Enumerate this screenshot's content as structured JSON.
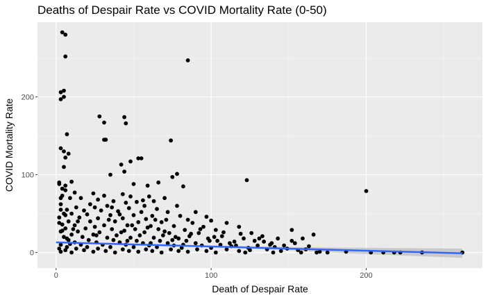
{
  "chart_data": {
    "type": "scatter",
    "title": "Deaths of Despair Rate vs COVID Mortality Rate (0-50)",
    "xlabel": "Death of Despair Rate",
    "ylabel": "COVID Mortality Rate",
    "xlim": [
      -12,
      275
    ],
    "ylim": [
      -20,
      296
    ],
    "x_ticks": [
      0,
      100,
      200
    ],
    "y_ticks": [
      0,
      100,
      200
    ],
    "x_minor": [
      50,
      150,
      250
    ],
    "y_minor": [
      50,
      150,
      250
    ],
    "grid": true,
    "background_color": "#ebebeb",
    "point_color": "#000000",
    "trend_color": "#3366ff",
    "ribbon_color": "#bdbdbd",
    "trend_line": {
      "x_start": 0,
      "y_start": 13,
      "x_end": 262,
      "y_end": -1
    },
    "confidence_band": {
      "x": [
        0,
        50,
        100,
        150,
        200,
        262
      ],
      "lower": [
        12,
        10,
        7,
        3,
        -2,
        -7
      ],
      "upper": [
        14,
        11.5,
        9,
        7,
        6,
        5
      ]
    },
    "points": [
      [
        4,
        283
      ],
      [
        6,
        280
      ],
      [
        6,
        252
      ],
      [
        85,
        247
      ],
      [
        3,
        206
      ],
      [
        5,
        208
      ],
      [
        3,
        197
      ],
      [
        5,
        200
      ],
      [
        28,
        175
      ],
      [
        44,
        174
      ],
      [
        31,
        167
      ],
      [
        45,
        166
      ],
      [
        7,
        152
      ],
      [
        32,
        145
      ],
      [
        31,
        145
      ],
      [
        74,
        144
      ],
      [
        3,
        134
      ],
      [
        5,
        130
      ],
      [
        8,
        127
      ],
      [
        6,
        122
      ],
      [
        53,
        121
      ],
      [
        55,
        121
      ],
      [
        48,
        117
      ],
      [
        42,
        113
      ],
      [
        5,
        110
      ],
      [
        44,
        104
      ],
      [
        78,
        101
      ],
      [
        35,
        100
      ],
      [
        75,
        97
      ],
      [
        123,
        93
      ],
      [
        2,
        90
      ],
      [
        10,
        91
      ],
      [
        6,
        86
      ],
      [
        50,
        88
      ],
      [
        66,
        90
      ],
      [
        59,
        86
      ],
      [
        82,
        85
      ],
      [
        4,
        82
      ],
      [
        6,
        80
      ],
      [
        12,
        77
      ],
      [
        200,
        79
      ],
      [
        24,
        76
      ],
      [
        43,
        75
      ],
      [
        31,
        73
      ],
      [
        60,
        72
      ],
      [
        3,
        70
      ],
      [
        9,
        70
      ],
      [
        16,
        70
      ],
      [
        48,
        72
      ],
      [
        70,
        70
      ],
      [
        27,
        68
      ],
      [
        37,
        66
      ],
      [
        52,
        65
      ],
      [
        63,
        66
      ],
      [
        45,
        64
      ],
      [
        22,
        62
      ],
      [
        33,
        60
      ],
      [
        57,
        60
      ],
      [
        78,
        60
      ],
      [
        13,
        58
      ],
      [
        25,
        58
      ],
      [
        47,
        57
      ],
      [
        65,
        56
      ],
      [
        3,
        55
      ],
      [
        7,
        55
      ],
      [
        18,
        54
      ],
      [
        29,
        54
      ],
      [
        40,
        53
      ],
      [
        55,
        52
      ],
      [
        72,
        52
      ],
      [
        90,
        52
      ],
      [
        5,
        50
      ],
      [
        10,
        50
      ],
      [
        20,
        49
      ],
      [
        35,
        48
      ],
      [
        50,
        48
      ],
      [
        62,
        47
      ],
      [
        80,
        47
      ],
      [
        97,
        46
      ],
      [
        2,
        45
      ],
      [
        15,
        45
      ],
      [
        27,
        44
      ],
      [
        43,
        44
      ],
      [
        58,
        43
      ],
      [
        71,
        42
      ],
      [
        85,
        42
      ],
      [
        100,
        41
      ],
      [
        8,
        40
      ],
      [
        22,
        40
      ],
      [
        38,
        40
      ],
      [
        53,
        39
      ],
      [
        68,
        39
      ],
      [
        88,
        38
      ],
      [
        110,
        38
      ],
      [
        4,
        36
      ],
      [
        12,
        35
      ],
      [
        31,
        35
      ],
      [
        46,
        35
      ],
      [
        61,
        34
      ],
      [
        76,
        34
      ],
      [
        95,
        33
      ],
      [
        118,
        33
      ],
      [
        6,
        31
      ],
      [
        19,
        31
      ],
      [
        36,
        30
      ],
      [
        51,
        30
      ],
      [
        66,
        30
      ],
      [
        83,
        29
      ],
      [
        103,
        29
      ],
      [
        152,
        29
      ],
      [
        3,
        27
      ],
      [
        14,
        27
      ],
      [
        28,
        26
      ],
      [
        42,
        26
      ],
      [
        57,
        26
      ],
      [
        73,
        25
      ],
      [
        92,
        25
      ],
      [
        126,
        25
      ],
      [
        10,
        23
      ],
      [
        24,
        23
      ],
      [
        39,
        22
      ],
      [
        54,
        22
      ],
      [
        69,
        22
      ],
      [
        86,
        21
      ],
      [
        107,
        21
      ],
      [
        133,
        21
      ],
      [
        166,
        23
      ],
      [
        5,
        20
      ],
      [
        17,
        20
      ],
      [
        33,
        19
      ],
      [
        48,
        19
      ],
      [
        63,
        19
      ],
      [
        79,
        18
      ],
      [
        98,
        18
      ],
      [
        121,
        18
      ],
      [
        143,
        18
      ],
      [
        159,
        18
      ],
      [
        8,
        16
      ],
      [
        21,
        16
      ],
      [
        37,
        16
      ],
      [
        52,
        15
      ],
      [
        67,
        15
      ],
      [
        84,
        15
      ],
      [
        104,
        15
      ],
      [
        128,
        15
      ],
      [
        12,
        13
      ],
      [
        26,
        13
      ],
      [
        41,
        13
      ],
      [
        56,
        12
      ],
      [
        72,
        12
      ],
      [
        90,
        12
      ],
      [
        112,
        12
      ],
      [
        139,
        12
      ],
      [
        154,
        12
      ],
      [
        3,
        10
      ],
      [
        16,
        10
      ],
      [
        30,
        10
      ],
      [
        45,
        10
      ],
      [
        60,
        9
      ],
      [
        76,
        9
      ],
      [
        94,
        9
      ],
      [
        116,
        9
      ],
      [
        147,
        9
      ],
      [
        7,
        7
      ],
      [
        20,
        7
      ],
      [
        35,
        7
      ],
      [
        50,
        7
      ],
      [
        65,
        7
      ],
      [
        81,
        6
      ],
      [
        100,
        6
      ],
      [
        124,
        6
      ],
      [
        2,
        5
      ],
      [
        13,
        5
      ],
      [
        27,
        5
      ],
      [
        43,
        4
      ],
      [
        58,
        4
      ],
      [
        74,
        4
      ],
      [
        91,
        4
      ],
      [
        110,
        4
      ],
      [
        136,
        4
      ],
      [
        161,
        4
      ],
      [
        6,
        3
      ],
      [
        18,
        3
      ],
      [
        32,
        2
      ],
      [
        47,
        2
      ],
      [
        62,
        2
      ],
      [
        79,
        2
      ],
      [
        97,
        2
      ],
      [
        118,
        2
      ],
      [
        145,
        2
      ],
      [
        3,
        1
      ],
      [
        10,
        0
      ],
      [
        24,
        1
      ],
      [
        38,
        0
      ],
      [
        53,
        1
      ],
      [
        68,
        0
      ],
      [
        85,
        1
      ],
      [
        103,
        0
      ],
      [
        122,
        0
      ],
      [
        140,
        0
      ],
      [
        158,
        0
      ],
      [
        168,
        0
      ],
      [
        175,
        0
      ],
      [
        187,
        1
      ],
      [
        203,
        0
      ],
      [
        211,
        0
      ],
      [
        218,
        0
      ],
      [
        222,
        0
      ],
      [
        236,
        0
      ],
      [
        262,
        0
      ],
      [
        2,
        88
      ],
      [
        4,
        73
      ],
      [
        3,
        62
      ],
      [
        6,
        48
      ],
      [
        2,
        38
      ],
      [
        4,
        28
      ],
      [
        7,
        18
      ],
      [
        9,
        11
      ],
      [
        11,
        30
      ],
      [
        14,
        40
      ],
      [
        25,
        33
      ],
      [
        34,
        42
      ],
      [
        44,
        28
      ],
      [
        49,
        35
      ],
      [
        59,
        32
      ],
      [
        64,
        42
      ],
      [
        70,
        27
      ],
      [
        77,
        20
      ],
      [
        87,
        24
      ],
      [
        93,
        30
      ],
      [
        99,
        15
      ],
      [
        106,
        10
      ],
      [
        113,
        8
      ],
      [
        119,
        24
      ],
      [
        130,
        9
      ],
      [
        134,
        14
      ],
      [
        141,
        7
      ],
      [
        149,
        5
      ],
      [
        156,
        3
      ],
      [
        163,
        8
      ],
      [
        56,
        67
      ],
      [
        36,
        58
      ],
      [
        41,
        49
      ],
      [
        26,
        22
      ],
      [
        46,
        15
      ],
      [
        61,
        12
      ],
      [
        75,
        16
      ],
      [
        82,
        10
      ],
      [
        102,
        20
      ],
      [
        108,
        26
      ],
      [
        115,
        14
      ],
      [
        125,
        3
      ],
      [
        131,
        18
      ],
      [
        152,
        15
      ],
      [
        138,
        10
      ],
      [
        170,
        1
      ]
    ]
  }
}
